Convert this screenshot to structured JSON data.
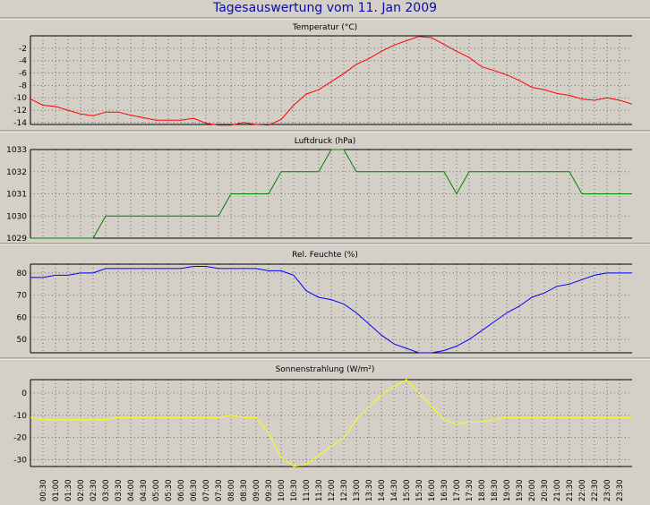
{
  "page": {
    "title": "Tagesauswertung vom 11. Jan 2009"
  },
  "time_labels": [
    "00:30",
    "01:00",
    "01:30",
    "02:00",
    "02:30",
    "03:00",
    "03:30",
    "04:00",
    "04:30",
    "05:00",
    "05:30",
    "06:00",
    "06:30",
    "07:00",
    "07:30",
    "08:00",
    "08:30",
    "09:00",
    "09:30",
    "10:00",
    "10:30",
    "11:00",
    "11:30",
    "12:00",
    "12:30",
    "13:00",
    "13:30",
    "14:00",
    "14:30",
    "15:00",
    "15:30",
    "16:00",
    "16:30",
    "17:00",
    "17:30",
    "18:00",
    "18:30",
    "19:00",
    "19:30",
    "20:00",
    "20:30",
    "21:00",
    "21:30",
    "22:00",
    "22:30",
    "23:00",
    "23:30"
  ],
  "chart_data": [
    {
      "type": "line",
      "title": "Temperatur (°C)",
      "color": "#ff0000",
      "ylim": [
        -14.3,
        0
      ],
      "yticks": [
        -14,
        -12,
        -10,
        -8,
        -6,
        -4,
        -2
      ],
      "x": [
        "00:00",
        "00:30",
        "01:00",
        "01:30",
        "02:00",
        "02:30",
        "03:00",
        "03:30",
        "04:00",
        "04:30",
        "05:00",
        "05:30",
        "06:00",
        "06:30",
        "07:00",
        "07:30",
        "08:00",
        "08:30",
        "09:00",
        "09:30",
        "10:00",
        "10:30",
        "11:00",
        "11:30",
        "12:00",
        "12:30",
        "13:00",
        "13:30",
        "14:00",
        "14:30",
        "15:00",
        "15:30",
        "16:00",
        "16:30",
        "17:00",
        "17:30",
        "18:00",
        "18:30",
        "19:00",
        "19:30",
        "20:00",
        "20:30",
        "21:00",
        "21:30",
        "22:00",
        "22:30",
        "23:00",
        "23:30",
        "24:00"
      ],
      "values": [
        -10.2,
        -11.2,
        -11.4,
        -12,
        -12.6,
        -12.9,
        -12.3,
        -12.3,
        -12.8,
        -13.2,
        -13.6,
        -13.6,
        -13.6,
        -13.3,
        -14.1,
        -14.4,
        -14.4,
        -14.0,
        -14.3,
        -14.4,
        -13.5,
        -11.2,
        -9.4,
        -8.7,
        -7.4,
        -6.1,
        -4.6,
        -3.7,
        -2.5,
        -1.5,
        -0.8,
        -0.1,
        -0.3,
        -1.4,
        -2.5,
        -3.5,
        -5.0,
        -5.6,
        -6.3,
        -7.2,
        -8.3,
        -8.7,
        -9.3,
        -9.6,
        -10.2,
        -10.4,
        -10.0,
        -10.4,
        -11.0
      ]
    },
    {
      "type": "line",
      "title": "Luftdruck (hPa)",
      "color": "#008000",
      "ylim": [
        1029,
        1033
      ],
      "yticks": [
        1029,
        1030,
        1031,
        1032,
        1033
      ],
      "x": [
        "00:00",
        "00:30",
        "01:00",
        "01:30",
        "02:00",
        "02:30",
        "03:00",
        "03:30",
        "04:00",
        "04:30",
        "05:00",
        "05:30",
        "06:00",
        "06:30",
        "07:00",
        "07:30",
        "08:00",
        "08:30",
        "09:00",
        "09:30",
        "10:00",
        "10:30",
        "11:00",
        "11:30",
        "12:00",
        "12:30",
        "13:00",
        "13:30",
        "14:00",
        "14:30",
        "15:00",
        "15:30",
        "16:00",
        "16:30",
        "17:00",
        "17:30",
        "18:00",
        "18:30",
        "19:00",
        "19:30",
        "20:00",
        "20:30",
        "21:00",
        "21:30",
        "22:00",
        "22:30",
        "23:00",
        "23:30",
        "24:00"
      ],
      "values": [
        1029,
        1029,
        1029,
        1029,
        1029,
        1029,
        1030,
        1030,
        1030,
        1030,
        1030,
        1030,
        1030,
        1030,
        1030,
        1030,
        1031,
        1031,
        1031,
        1031,
        1032,
        1032,
        1032,
        1032,
        1033,
        1033,
        1032,
        1032,
        1032,
        1032,
        1032,
        1032,
        1032,
        1032,
        1031,
        1032,
        1032,
        1032,
        1032,
        1032,
        1032,
        1032,
        1032,
        1032,
        1031,
        1031,
        1031,
        1031,
        1031
      ]
    },
    {
      "type": "line",
      "title": "Rel. Feuchte (%)",
      "color": "#0000ff",
      "ylim": [
        44,
        84
      ],
      "yticks": [
        50,
        60,
        70,
        80
      ],
      "x": [
        "00:00",
        "00:30",
        "01:00",
        "01:30",
        "02:00",
        "02:30",
        "03:00",
        "03:30",
        "04:00",
        "04:30",
        "05:00",
        "05:30",
        "06:00",
        "06:30",
        "07:00",
        "07:30",
        "08:00",
        "08:30",
        "09:00",
        "09:30",
        "10:00",
        "10:30",
        "11:00",
        "11:30",
        "12:00",
        "12:30",
        "13:00",
        "13:30",
        "14:00",
        "14:30",
        "15:00",
        "15:30",
        "16:00",
        "16:30",
        "17:00",
        "17:30",
        "18:00",
        "18:30",
        "19:00",
        "19:30",
        "20:00",
        "20:30",
        "21:00",
        "21:30",
        "22:00",
        "22:30",
        "23:00",
        "23:30",
        "24:00"
      ],
      "values": [
        78,
        78,
        79,
        79,
        80,
        80,
        82,
        82,
        82,
        82,
        82,
        82,
        82,
        83,
        83,
        82,
        82,
        82,
        82,
        81,
        81,
        79,
        72,
        69,
        68,
        66,
        62,
        57,
        52,
        48,
        46,
        44,
        44,
        45,
        47,
        50,
        54,
        58,
        62,
        65,
        69,
        71,
        74,
        75,
        77,
        79,
        80,
        80,
        80
      ]
    },
    {
      "type": "line",
      "title": "Sonnenstrahlung (W/m²)",
      "color": "#ffff00",
      "ylim": [
        -33,
        6
      ],
      "yticks": [
        -30,
        -20,
        -10,
        0
      ],
      "x": [
        "00:00",
        "00:30",
        "01:00",
        "01:30",
        "02:00",
        "02:30",
        "03:00",
        "03:30",
        "04:00",
        "04:30",
        "05:00",
        "05:30",
        "06:00",
        "06:30",
        "07:00",
        "07:30",
        "08:00",
        "08:30",
        "09:00",
        "09:30",
        "10:00",
        "10:30",
        "11:00",
        "11:30",
        "12:00",
        "12:30",
        "13:00",
        "13:30",
        "14:00",
        "14:30",
        "15:00",
        "15:30",
        "16:00",
        "16:30",
        "17:00",
        "17:30",
        "18:00",
        "18:30",
        "19:00",
        "19:30",
        "20:00",
        "20:30",
        "21:00",
        "21:30",
        "22:00",
        "22:30",
        "23:00",
        "23:30",
        "24:00"
      ],
      "values": [
        -11,
        -12,
        -12,
        -12,
        -12,
        -12,
        -12,
        -11,
        -11,
        -11,
        -11,
        -11,
        -11,
        -11,
        -11,
        -11,
        -10,
        -11,
        -11,
        -18,
        -29,
        -33,
        -32,
        -28,
        -24,
        -20,
        -12,
        -6,
        -1,
        3,
        6,
        0,
        -6,
        -12,
        -14,
        -13,
        -13,
        -12,
        -11,
        -11,
        -11,
        -11,
        -11,
        -11,
        -11,
        -11,
        -11,
        -11,
        -11
      ]
    }
  ]
}
